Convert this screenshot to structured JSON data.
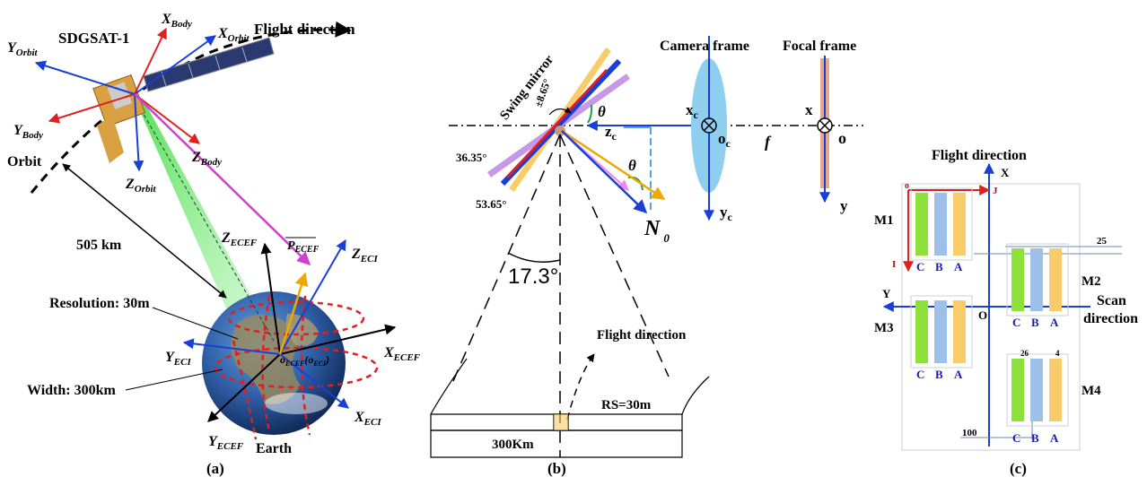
{
  "panel_a": {
    "caption": "(a)",
    "satellite": "SDGSAT-1",
    "flight_direction": "Flight direction",
    "orbit": "Orbit",
    "altitude": "505 km",
    "resolution": "Resolution: 30m",
    "width": "Width: 300km",
    "earth": "Earth",
    "x_body": "X",
    "x_body_sub": "Body",
    "y_body": "Y",
    "y_body_sub": "Body",
    "z_body": "Z",
    "z_body_sub": "Body",
    "x_orbit": "X",
    "x_orbit_sub": "Orbit",
    "y_orbit": "Y",
    "y_orbit_sub": "Orbit",
    "z_orbit": "Z",
    "z_orbit_sub": "Orbit",
    "z_ecef": "Z",
    "z_ecef_sub": "ECEF",
    "x_ecef": "X",
    "x_ecef_sub": "ECEF",
    "y_ecef": "Y",
    "y_ecef_sub": "ECEF",
    "z_eci": "Z",
    "z_eci_sub": "ECI",
    "x_eci": "X",
    "x_eci_sub": "ECI",
    "y_eci": "Y",
    "y_eci_sub": "ECI",
    "p_ecef": "P",
    "p_ecef_sub": "ECEF",
    "origin": "o",
    "origin_sub": "ECEF",
    "origin_eci": "(o",
    "origin_eci_sub": "ECI",
    "origin_close": ")"
  },
  "panel_b": {
    "caption": "(b)",
    "swing_mirror": "Swing mirror",
    "mirror_angle": "±8.65°",
    "angle_36": "36.35°",
    "angle_53": "53.65°",
    "theta": "θ",
    "zc": "z",
    "zc_sub": "c",
    "xc": "x",
    "xc_sub": "c",
    "oc": "o",
    "oc_sub": "c",
    "yc": "y",
    "yc_sub": "c",
    "f": "f",
    "x": "x",
    "o": "o",
    "y": "y",
    "camera_frame": "Camera frame",
    "focal_frame": "Focal frame",
    "n0": "N",
    "n0_sub": "0",
    "fov": "17.3°",
    "flight_direction": "Flight direction",
    "rs": "RS=30m",
    "swath": "300Km"
  },
  "panel_c": {
    "caption": "(c)",
    "flight_direction": "Flight direction",
    "x_axis": "X",
    "y_axis": "Y",
    "origin": "O",
    "scan_direction_1": "Scan",
    "scan_direction_2": "direction",
    "m1": "M1",
    "m2": "M2",
    "m3": "M3",
    "m4": "M4",
    "o_small": "o",
    "i_axis": "I",
    "j_axis": "J",
    "n25": "25",
    "n26": "26",
    "n4": "4",
    "n100": "100",
    "c": "C",
    "b": "B",
    "a": "A"
  },
  "colors": {
    "blue": "#1a3fd6",
    "red": "#e02020",
    "magenta": "#d040d0",
    "orange": "#f0a800",
    "green_band": "#8ee03a",
    "blue_band": "#9cc0e8",
    "yellow_band": "#f8cc6a",
    "lens": "#8ecff0",
    "focal_bar": "#e8a888"
  }
}
